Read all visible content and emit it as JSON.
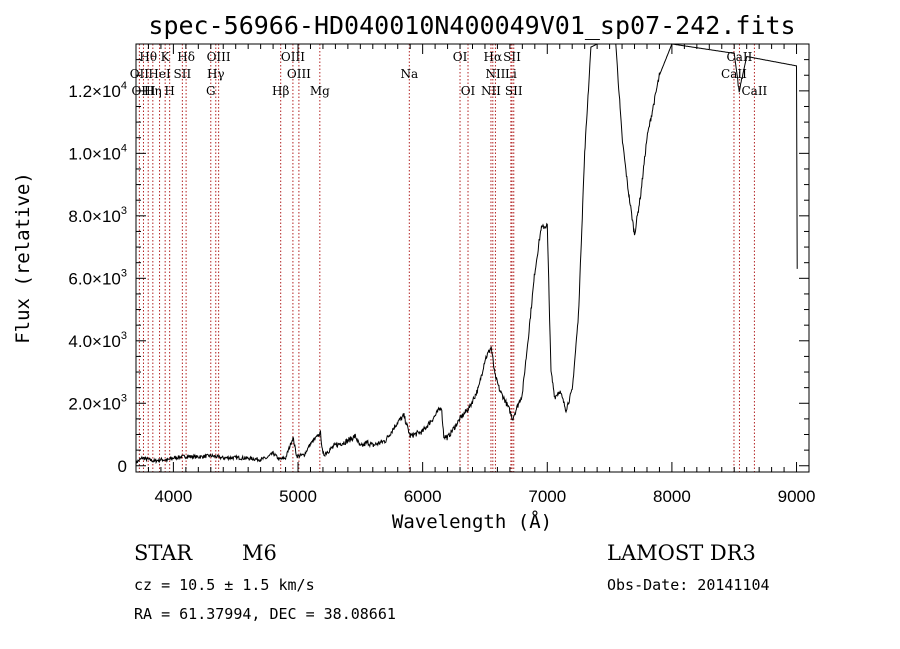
{
  "chart_data": {
    "type": "line",
    "title": "spec-56966-HD040010N400049V01_sp07-242.fits",
    "xlabel": "Wavelength (Å)",
    "ylabel": "Flux (relative)",
    "xlim": [
      3700,
      9100
    ],
    "ylim": [
      -200,
      13500
    ],
    "x_ticks": [
      {
        "value": 4000,
        "label": "4000"
      },
      {
        "value": 5000,
        "label": "5000"
      },
      {
        "value": 6000,
        "label": "6000"
      },
      {
        "value": 7000,
        "label": "7000"
      },
      {
        "value": 8000,
        "label": "8000"
      },
      {
        "value": 9000,
        "label": "9000"
      }
    ],
    "y_ticks": [
      {
        "value": 0,
        "mant": "0",
        "exp": ""
      },
      {
        "value": 2000,
        "mant": "2.0×10",
        "exp": "3"
      },
      {
        "value": 4000,
        "mant": "4.0×10",
        "exp": "3"
      },
      {
        "value": 6000,
        "mant": "6.0×10",
        "exp": "3"
      },
      {
        "value": 8000,
        "mant": "8.0×10",
        "exp": "3"
      },
      {
        "value": 10000,
        "mant": "1.0×10",
        "exp": "4"
      },
      {
        "value": 12000,
        "mant": "1.2×10",
        "exp": "4"
      }
    ],
    "series": [
      {
        "name": "flux",
        "points": [
          [
            3700,
            100
          ],
          [
            3750,
            250
          ],
          [
            3800,
            200
          ],
          [
            3850,
            150
          ],
          [
            3900,
            200
          ],
          [
            3950,
            180
          ],
          [
            4000,
            250
          ],
          [
            4100,
            300
          ],
          [
            4200,
            280
          ],
          [
            4300,
            320
          ],
          [
            4400,
            250
          ],
          [
            4500,
            260
          ],
          [
            4600,
            240
          ],
          [
            4700,
            200
          ],
          [
            4750,
            250
          ],
          [
            4800,
            400
          ],
          [
            4850,
            200
          ],
          [
            4900,
            250
          ],
          [
            4960,
            900
          ],
          [
            4990,
            300
          ],
          [
            5050,
            350
          ],
          [
            5100,
            700
          ],
          [
            5180,
            1050
          ],
          [
            5200,
            350
          ],
          [
            5300,
            650
          ],
          [
            5400,
            800
          ],
          [
            5460,
            950
          ],
          [
            5500,
            600
          ],
          [
            5560,
            750
          ],
          [
            5600,
            650
          ],
          [
            5700,
            800
          ],
          [
            5800,
            1400
          ],
          [
            5850,
            1600
          ],
          [
            5900,
            950
          ],
          [
            6000,
            1100
          ],
          [
            6100,
            1600
          ],
          [
            6150,
            1900
          ],
          [
            6170,
            950
          ],
          [
            6200,
            900
          ],
          [
            6300,
            1500
          ],
          [
            6380,
            1900
          ],
          [
            6450,
            2500
          ],
          [
            6500,
            3400
          ],
          [
            6550,
            3800
          ],
          [
            6580,
            2900
          ],
          [
            6620,
            2400
          ],
          [
            6660,
            2100
          ],
          [
            6700,
            1750
          ],
          [
            6720,
            1500
          ],
          [
            6760,
            1900
          ],
          [
            6800,
            2300
          ],
          [
            6850,
            4200
          ],
          [
            6900,
            6200
          ],
          [
            6950,
            7600
          ],
          [
            7000,
            7700
          ],
          [
            7030,
            3000
          ],
          [
            7060,
            2200
          ],
          [
            7100,
            2400
          ],
          [
            7150,
            1800
          ],
          [
            7200,
            2400
          ],
          [
            7250,
            4800
          ],
          [
            7300,
            10000
          ],
          [
            7350,
            13400
          ],
          [
            7400,
            13500
          ],
          [
            7550,
            13500
          ],
          [
            7600,
            10500
          ],
          [
            7650,
            8800
          ],
          [
            7700,
            7400
          ],
          [
            7750,
            8700
          ],
          [
            7800,
            10500
          ],
          [
            7850,
            11500
          ],
          [
            7900,
            12500
          ],
          [
            7950,
            13000
          ],
          [
            8000,
            13500
          ],
          [
            8500,
            13200
          ],
          [
            8540,
            12000
          ],
          [
            8600,
            13100
          ],
          [
            9000,
            12800
          ],
          [
            9005,
            6300
          ]
        ]
      }
    ],
    "lines_top": [
      {
        "label": "Hθ",
        "lambda": 3798
      },
      {
        "label": "K",
        "lambda": 3934
      },
      {
        "label": "Hδ",
        "lambda": 4102
      },
      {
        "label": "OIII",
        "lambda": 4363
      },
      {
        "label": "OIII",
        "lambda": 4959
      },
      {
        "label": "OI",
        "lambda": 6300
      },
      {
        "label": "Hα",
        "lambda": 6563
      },
      {
        "label": "SII",
        "lambda": 6717
      },
      {
        "label": "CaII",
        "lambda": 8542
      }
    ],
    "lines_mid": [
      {
        "label": "OII",
        "lambda": 3727
      },
      {
        "label": "HeI",
        "lambda": 3889
      },
      {
        "label": "SII",
        "lambda": 4072
      },
      {
        "label": "Hγ",
        "lambda": 4340
      },
      {
        "label": "OIII",
        "lambda": 5007
      },
      {
        "label": "Na",
        "lambda": 5893
      },
      {
        "label": "NII",
        "lambda": 6584
      },
      {
        "label": "Li",
        "lambda": 6708
      },
      {
        "label": "CaII",
        "lambda": 8498
      }
    ],
    "lines_low": [
      {
        "label": "OIII",
        "lambda": 3760
      },
      {
        "label": "Hη",
        "lambda": 3835
      },
      {
        "label": "H",
        "lambda": 3970
      },
      {
        "label": "G",
        "lambda": 4300
      },
      {
        "label": "Hβ",
        "lambda": 4861
      },
      {
        "label": "Mg",
        "lambda": 5175
      },
      {
        "label": "OI",
        "lambda": 6364
      },
      {
        "label": "NII",
        "lambda": 6548
      },
      {
        "label": "SII",
        "lambda": 6731
      },
      {
        "label": "CaII",
        "lambda": 8662
      }
    ],
    "line_color": "#b22222"
  },
  "info": {
    "object_class": "STAR",
    "subclass": "M6",
    "survey": "LAMOST DR3",
    "cz": "cz = 10.5 ± 1.5 km/s",
    "obs_date": "Obs-Date: 20141104",
    "coords": "RA =  61.37994, DEC =  38.08661"
  }
}
